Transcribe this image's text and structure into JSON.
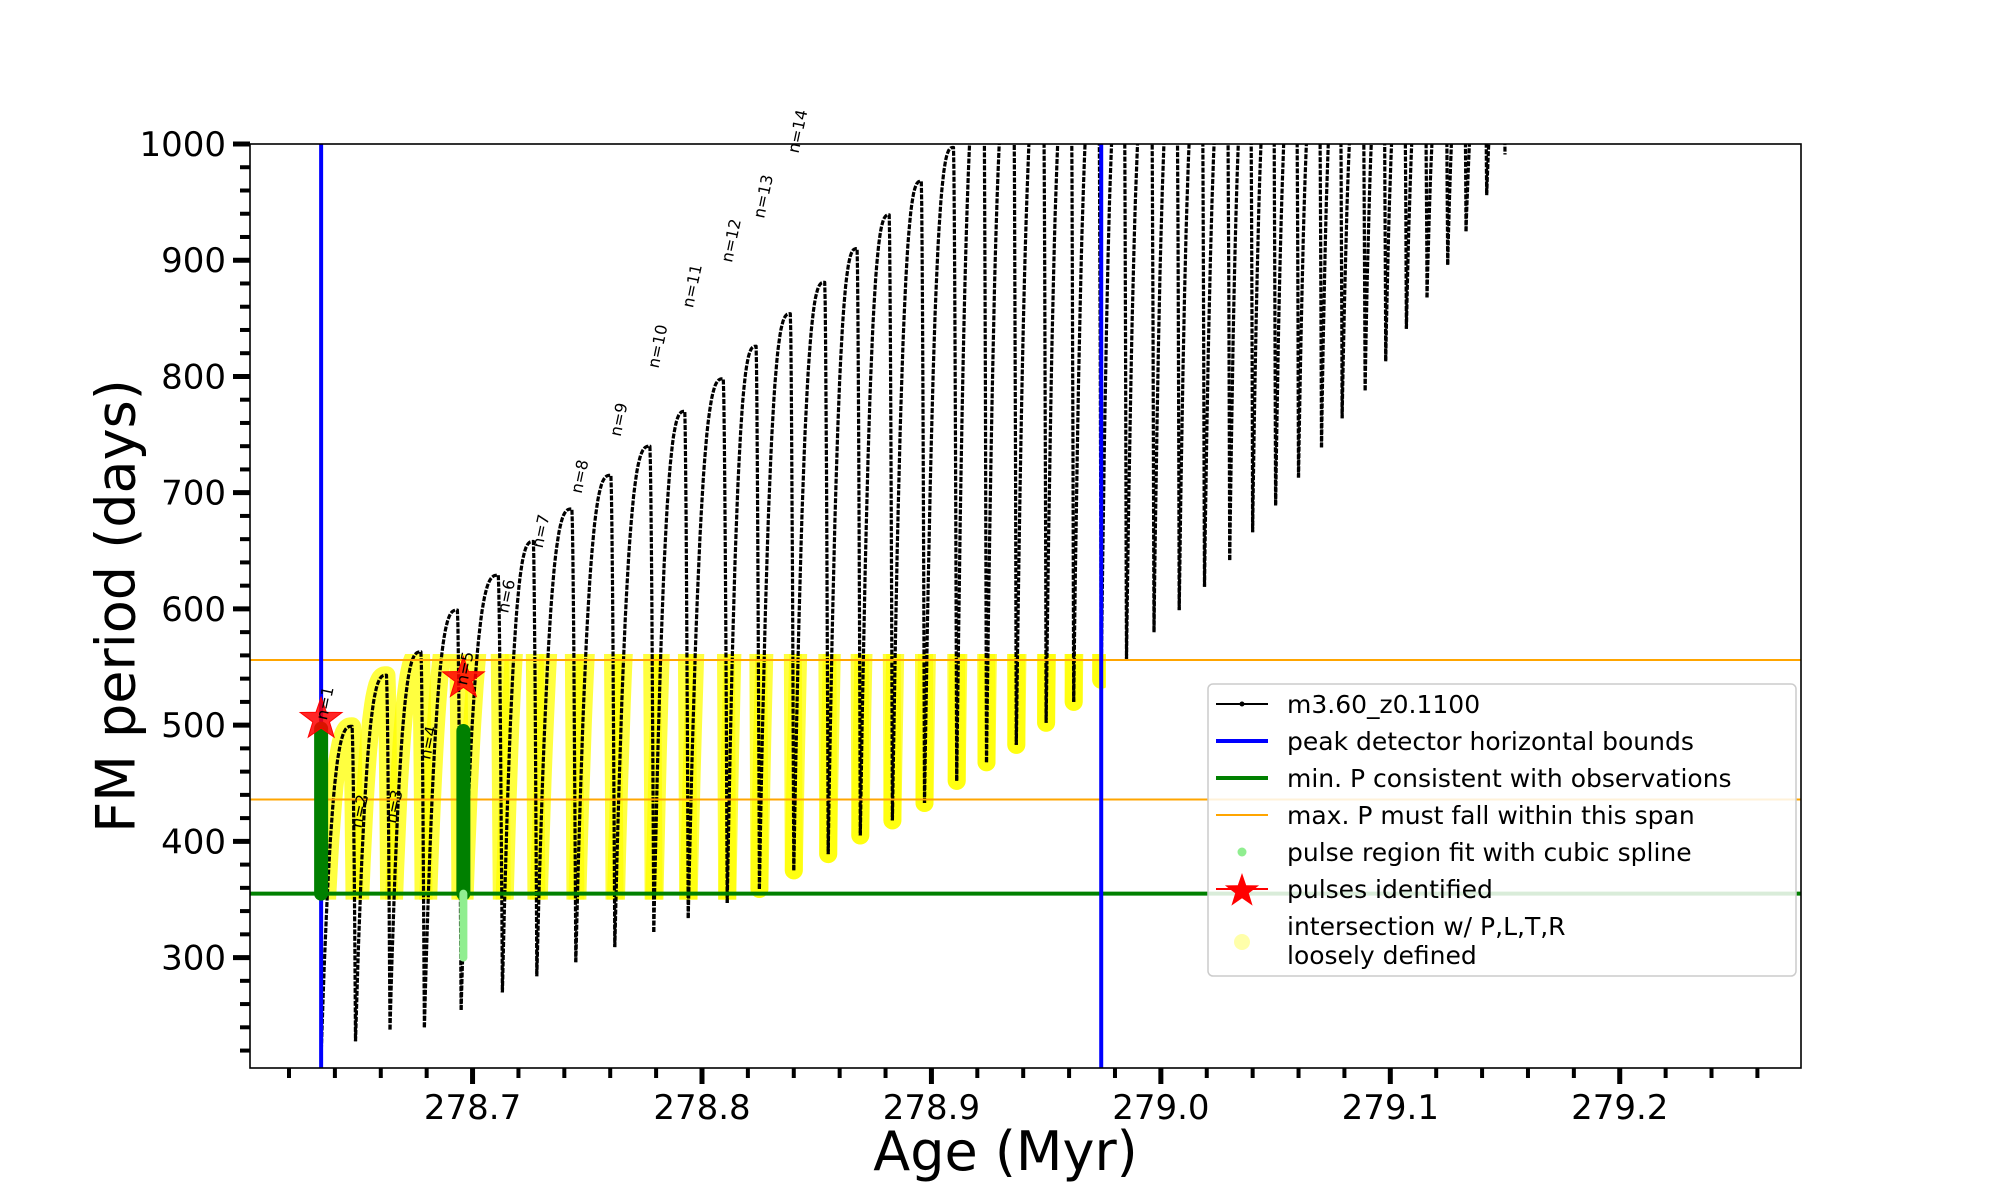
{
  "chart_data": {
    "type": "line",
    "title": "",
    "xlabel": "Age (Myr)",
    "ylabel": "FM period (days)",
    "xlim": [
      278.603,
      279.279
    ],
    "ylim": [
      205,
      1000
    ],
    "grid": false,
    "legend_placement": "upper-left",
    "x_ticks": [
      {
        "value": 278.7,
        "label": "278.7"
      },
      {
        "value": 278.8,
        "label": "278.8"
      },
      {
        "value": 278.9,
        "label": "278.9"
      },
      {
        "value": 279.0,
        "label": "279.0"
      },
      {
        "value": 279.1,
        "label": "279.1"
      },
      {
        "value": 279.2,
        "label": "279.2"
      }
    ],
    "y_ticks": [
      {
        "value": 300,
        "label": "300"
      },
      {
        "value": 400,
        "label": "400"
      },
      {
        "value": 500,
        "label": "500"
      },
      {
        "value": 600,
        "label": "600"
      },
      {
        "value": 700,
        "label": "700"
      },
      {
        "value": 800,
        "label": "800"
      },
      {
        "value": 900,
        "label": "900"
      },
      {
        "value": 1000,
        "label": "1000"
      }
    ],
    "x_minor_step": 0.02,
    "y_minor_step": 20,
    "series": [
      {
        "name": "m3.60_z0.1100",
        "color": "#000000",
        "start": {
          "age": 278.634,
          "P": 215
        },
        "pulses": [
          {
            "age": 278.649,
            "peak_P": 499,
            "min_P": 228
          },
          {
            "age": 278.664,
            "peak_P": 543,
            "min_P": 238
          },
          {
            "age": 278.679,
            "peak_P": 563,
            "min_P": 240
          },
          {
            "age": 278.695,
            "peak_P": 599,
            "min_P": 255
          },
          {
            "age": 278.713,
            "peak_P": 629,
            "min_P": 270
          },
          {
            "age": 278.728,
            "peak_P": 658,
            "min_P": 284
          },
          {
            "age": 278.745,
            "peak_P": 686,
            "min_P": 296
          },
          {
            "age": 278.762,
            "peak_P": 715,
            "min_P": 309
          },
          {
            "age": 278.779,
            "peak_P": 740,
            "min_P": 322
          },
          {
            "age": 278.794,
            "peak_P": 770,
            "min_P": 334
          },
          {
            "age": 278.811,
            "peak_P": 798,
            "min_P": 347
          },
          {
            "age": 278.825,
            "peak_P": 826,
            "min_P": 359
          },
          {
            "age": 278.84,
            "peak_P": 854,
            "min_P": 375
          },
          {
            "age": 278.855,
            "peak_P": 881,
            "min_P": 389
          },
          {
            "age": 278.869,
            "peak_P": 910,
            "min_P": 405
          },
          {
            "age": 278.883,
            "peak_P": 939,
            "min_P": 418
          },
          {
            "age": 278.897,
            "peak_P": 968,
            "min_P": 433
          },
          {
            "age": 278.911,
            "peak_P": 997,
            "min_P": 452
          },
          {
            "age": 278.924,
            "peak_P": null,
            "min_P": 468
          },
          {
            "age": 278.937,
            "peak_P": null,
            "min_P": 483
          },
          {
            "age": 278.95,
            "peak_P": null,
            "min_P": 502
          },
          {
            "age": 278.962,
            "peak_P": null,
            "min_P": 520
          },
          {
            "age": 278.974,
            "peak_P": null,
            "min_P": 539
          },
          {
            "age": 278.985,
            "peak_P": null,
            "min_P": 557
          },
          {
            "age": 278.997,
            "peak_P": null,
            "min_P": 580
          },
          {
            "age": 279.008,
            "peak_P": null,
            "min_P": 599
          },
          {
            "age": 279.019,
            "peak_P": null,
            "min_P": 619
          },
          {
            "age": 279.03,
            "peak_P": null,
            "min_P": 642
          },
          {
            "age": 279.04,
            "peak_P": null,
            "min_P": 666
          },
          {
            "age": 279.05,
            "peak_P": null,
            "min_P": 689
          },
          {
            "age": 279.06,
            "peak_P": null,
            "min_P": 713
          },
          {
            "age": 279.07,
            "peak_P": null,
            "min_P": 739
          },
          {
            "age": 279.079,
            "peak_P": null,
            "min_P": 764
          },
          {
            "age": 279.089,
            "peak_P": null,
            "min_P": 788
          },
          {
            "age": 279.098,
            "peak_P": null,
            "min_P": 813
          },
          {
            "age": 279.107,
            "peak_P": null,
            "min_P": 841
          },
          {
            "age": 279.116,
            "peak_P": null,
            "min_P": 868
          },
          {
            "age": 279.125,
            "peak_P": null,
            "min_P": 896
          },
          {
            "age": 279.133,
            "peak_P": null,
            "min_P": 925
          },
          {
            "age": 279.142,
            "peak_P": null,
            "min_P": 956
          },
          {
            "age": 279.15,
            "peak_P": null,
            "min_P": 991
          }
        ]
      }
    ],
    "vlines": [
      {
        "name": "peak detector horizontal bounds",
        "age": 278.634,
        "color": "#0000ff"
      },
      {
        "name": "peak detector horizontal bounds",
        "age": 278.974,
        "color": "#0000ff"
      }
    ],
    "hlines": [
      {
        "name": "min. P consistent with observations",
        "P": 355,
        "color": "#008000"
      },
      {
        "name": "max. P must fall within this span",
        "P": 556,
        "color": "#ffa500"
      },
      {
        "name": "max. P must fall within this span",
        "P": 436,
        "color": "#ffa500"
      }
    ],
    "intersection_region": {
      "P_min": 355,
      "P_max": 556,
      "age_min": 278.63,
      "age_max": 278.976,
      "color": "#ffff00"
    },
    "pulse_regions": [
      {
        "age": 278.634,
        "P": [
          355,
          497
        ],
        "color": "#008000"
      },
      {
        "age": 278.696,
        "P": [
          355,
          495
        ],
        "color": "#008000"
      },
      {
        "age": 278.696,
        "P": [
          300,
          355
        ],
        "color": "#90ee90"
      }
    ],
    "pulses_identified": [
      {
        "age": 278.634,
        "P": 505
      },
      {
        "age": 278.696,
        "P": 540
      }
    ],
    "pulse_labels": [
      {
        "text": "n=1",
        "age": 278.638,
        "P": 518,
        "color": "#000000"
      },
      {
        "text": "n=2",
        "age": 278.653,
        "P": 425,
        "color": "#000000"
      },
      {
        "text": "n=3",
        "age": 278.668,
        "P": 429,
        "color": "#000000"
      },
      {
        "text": "n=4",
        "age": 278.683,
        "P": 484,
        "color": "#000000"
      },
      {
        "text": "n=5",
        "age": 278.699,
        "P": 548,
        "color": "#000000"
      },
      {
        "text": "n=6",
        "age": 278.717,
        "P": 610,
        "color": "#000000"
      },
      {
        "text": "n=7",
        "age": 278.732,
        "P": 666,
        "color": "#000000"
      },
      {
        "text": "n=8",
        "age": 278.749,
        "P": 713,
        "color": "#000000"
      },
      {
        "text": "n=9",
        "age": 278.766,
        "P": 762,
        "color": "#000000"
      },
      {
        "text": "n=10",
        "age": 278.783,
        "P": 825,
        "color": "#000000"
      },
      {
        "text": "n=11",
        "age": 278.798,
        "P": 877,
        "color": "#000000"
      },
      {
        "text": "n=12",
        "age": 278.815,
        "P": 916,
        "color": "#000000"
      },
      {
        "text": "n=13",
        "age": 278.829,
        "P": 954,
        "color": "#000000"
      },
      {
        "text": "n=14",
        "age": 278.844,
        "P": 1010,
        "color": "#000000"
      }
    ],
    "legend": [
      {
        "label": "m3.60_z0.1100",
        "symbol": "line-dot",
        "color": "#000000"
      },
      {
        "label": "peak detector horizontal bounds",
        "symbol": "line-thick",
        "color": "#0000ff"
      },
      {
        "label": "min. P consistent with observations",
        "symbol": "line-thick",
        "color": "#008000"
      },
      {
        "label": "max. P must fall within this span",
        "symbol": "line-thin",
        "color": "#ffa500"
      },
      {
        "label": "pulse region fit with cubic spline",
        "symbol": "dot",
        "color": "#90ee90"
      },
      {
        "label": "pulses identified",
        "symbol": "star",
        "color": "#ff0000"
      },
      {
        "label": "intersection w/ P,L,T,R",
        "label2": "loosely defined",
        "symbol": "circle",
        "color": "#ffffaa"
      }
    ]
  }
}
